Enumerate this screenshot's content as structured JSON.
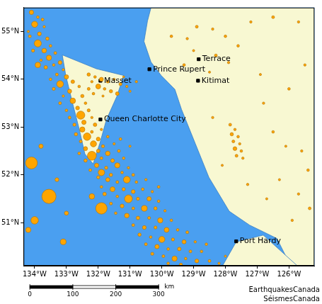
{
  "chart_data": {
    "type": "bubble",
    "color": "#ffa500",
    "grid": false,
    "xlim": [
      -134.35,
      -125.2
    ],
    "ylim": [
      50.1,
      55.5
    ],
    "xticks": [
      {
        "value": -134,
        "label": "134°W"
      },
      {
        "value": -133,
        "label": "133°W"
      },
      {
        "value": -132,
        "label": "132°W"
      },
      {
        "value": -131,
        "label": "131°W"
      },
      {
        "value": -130,
        "label": "130°W"
      },
      {
        "value": -129,
        "label": "129°W"
      },
      {
        "value": -128,
        "label": "128°W"
      },
      {
        "value": -127,
        "label": "127°W"
      },
      {
        "value": -126,
        "label": "126°W"
      }
    ],
    "yticks": [
      {
        "value": 51,
        "label": "51°N"
      },
      {
        "value": 52,
        "label": "52°N"
      },
      {
        "value": 53,
        "label": "53°N"
      },
      {
        "value": 54,
        "label": "54°N"
      },
      {
        "value": 55,
        "label": "55°N"
      }
    ],
    "points": [
      [
        -134.1,
        55.4,
        3.2
      ],
      [
        -133.9,
        55.3,
        2.5
      ],
      [
        -134.0,
        55.15,
        3.8
      ],
      [
        -133.7,
        55.1,
        2.4
      ],
      [
        -133.85,
        54.95,
        3.0
      ],
      [
        -134.15,
        54.9,
        2.6
      ],
      [
        -133.6,
        54.85,
        2.8
      ],
      [
        -133.9,
        54.75,
        4.1
      ],
      [
        -133.5,
        54.7,
        2.5
      ],
      [
        -133.7,
        54.6,
        3.3
      ],
      [
        -134.05,
        54.6,
        2.7
      ],
      [
        -133.35,
        54.55,
        2.6
      ],
      [
        -133.55,
        54.45,
        3.5
      ],
      [
        -133.8,
        54.4,
        2.4
      ],
      [
        -133.2,
        54.35,
        3.0
      ],
      [
        -133.4,
        54.3,
        2.5
      ],
      [
        -133.65,
        54.25,
        2.9
      ],
      [
        -133.9,
        54.3,
        3.6
      ],
      [
        -133.1,
        54.2,
        2.4
      ],
      [
        -134.2,
        55.0,
        2.3
      ],
      [
        -133.75,
        55.25,
        2.6
      ],
      [
        -132.3,
        54.1,
        2.8
      ],
      [
        -132.1,
        54.05,
        2.5
      ],
      [
        -131.9,
        54.0,
        3.1
      ],
      [
        -132.2,
        53.95,
        2.4
      ],
      [
        -131.7,
        53.95,
        2.6
      ],
      [
        -131.5,
        54.0,
        2.3
      ],
      [
        -132.0,
        53.85,
        3.4
      ],
      [
        -131.8,
        53.8,
        2.5
      ],
      [
        -131.3,
        53.9,
        2.7
      ],
      [
        -131.1,
        53.85,
        2.4
      ],
      [
        -132.3,
        53.8,
        2.6
      ],
      [
        -131.6,
        53.75,
        2.8
      ],
      [
        -131.0,
        53.75,
        2.3
      ],
      [
        -132.15,
        53.7,
        2.5
      ],
      [
        -131.4,
        53.7,
        2.9
      ],
      [
        -130.8,
        53.95,
        2.4
      ],
      [
        -131.2,
        54.05,
        2.2
      ],
      [
        -131.85,
        53.65,
        2.3
      ],
      [
        -133.3,
        54.1,
        2.6
      ],
      [
        -133.0,
        54.05,
        3.2
      ],
      [
        -133.5,
        54.0,
        2.5
      ],
      [
        -132.8,
        53.95,
        2.9
      ],
      [
        -133.2,
        53.9,
        4.0
      ],
      [
        -132.6,
        53.85,
        2.5
      ],
      [
        -133.4,
        53.8,
        2.7
      ],
      [
        -132.9,
        53.75,
        3.1
      ],
      [
        -133.1,
        53.65,
        2.4
      ],
      [
        -132.5,
        53.65,
        2.8
      ],
      [
        -132.8,
        53.55,
        3.6
      ],
      [
        -133.2,
        53.5,
        2.6
      ],
      [
        -132.4,
        53.5,
        2.5
      ],
      [
        -132.65,
        53.4,
        3.0
      ],
      [
        -133.0,
        53.35,
        2.5
      ],
      [
        -132.3,
        53.35,
        2.7
      ],
      [
        -132.55,
        53.25,
        4.4
      ],
      [
        -132.9,
        53.2,
        2.6
      ],
      [
        -132.2,
        53.2,
        2.4
      ],
      [
        -132.45,
        53.1,
        3.2
      ],
      [
        -132.75,
        53.05,
        2.7
      ],
      [
        -132.1,
        53.05,
        2.9
      ],
      [
        -132.5,
        52.95,
        3.5
      ],
      [
        -132.2,
        52.9,
        2.6
      ],
      [
        -131.9,
        52.95,
        2.4
      ],
      [
        -132.7,
        52.85,
        2.8
      ],
      [
        -132.35,
        52.8,
        4.2
      ],
      [
        -132.0,
        52.75,
        3.0
      ],
      [
        -131.7,
        52.8,
        2.5
      ],
      [
        -132.55,
        52.7,
        2.6
      ],
      [
        -132.15,
        52.65,
        3.8
      ],
      [
        -131.85,
        52.6,
        2.7
      ],
      [
        -131.5,
        52.65,
        2.4
      ],
      [
        -132.4,
        52.55,
        3.1
      ],
      [
        -132.0,
        52.5,
        2.9
      ],
      [
        -131.7,
        52.45,
        3.3
      ],
      [
        -131.35,
        52.5,
        2.6
      ],
      [
        -132.6,
        52.45,
        2.5
      ],
      [
        -132.2,
        52.4,
        4.6
      ],
      [
        -131.9,
        52.35,
        2.6
      ],
      [
        -131.55,
        52.3,
        3.0
      ],
      [
        -131.2,
        52.35,
        2.5
      ],
      [
        -132.4,
        52.3,
        2.8
      ],
      [
        -132.05,
        52.2,
        3.2
      ],
      [
        -131.75,
        52.15,
        2.7
      ],
      [
        -131.4,
        52.2,
        3.5
      ],
      [
        -131.05,
        52.15,
        2.4
      ],
      [
        -132.25,
        52.1,
        2.6
      ],
      [
        -131.9,
        52.05,
        3.9
      ],
      [
        -131.6,
        52.0,
        2.8
      ],
      [
        -131.25,
        52.05,
        2.5
      ],
      [
        -130.9,
        52.0,
        2.6
      ],
      [
        -131.3,
        52.75,
        2.5
      ],
      [
        -131.0,
        52.6,
        2.3
      ],
      [
        -132.0,
        51.95,
        2.7
      ],
      [
        -131.7,
        51.9,
        3.1
      ],
      [
        -131.4,
        51.85,
        2.6
      ],
      [
        -131.1,
        51.9,
        4.0
      ],
      [
        -130.8,
        51.85,
        2.5
      ],
      [
        -130.5,
        51.9,
        2.4
      ],
      [
        -131.9,
        51.75,
        2.5
      ],
      [
        -131.55,
        51.7,
        3.4
      ],
      [
        -131.2,
        51.7,
        2.8
      ],
      [
        -130.9,
        51.65,
        3.0
      ],
      [
        -130.6,
        51.7,
        2.6
      ],
      [
        -130.3,
        51.65,
        2.4
      ],
      [
        -131.8,
        51.6,
        2.9
      ],
      [
        -131.4,
        51.55,
        2.5
      ],
      [
        -131.05,
        51.5,
        4.3
      ],
      [
        -130.75,
        51.5,
        2.7
      ],
      [
        -130.4,
        51.5,
        3.2
      ],
      [
        -130.1,
        51.45,
        2.5
      ],
      [
        -131.6,
        51.4,
        2.6
      ],
      [
        -131.25,
        51.35,
        3.0
      ],
      [
        -130.9,
        51.3,
        2.6
      ],
      [
        -130.55,
        51.3,
        3.7
      ],
      [
        -130.2,
        51.3,
        2.8
      ],
      [
        -129.9,
        51.25,
        2.4
      ],
      [
        -131.45,
        51.2,
        2.5
      ],
      [
        -131.1,
        51.15,
        3.3
      ],
      [
        -130.75,
        51.1,
        2.9
      ],
      [
        -130.4,
        51.1,
        2.6
      ],
      [
        -130.05,
        51.05,
        3.5
      ],
      [
        -129.7,
        51.05,
        2.5
      ],
      [
        -131.9,
        51.3,
        5.2
      ],
      [
        -132.2,
        51.55,
        3.6
      ],
      [
        -130.1,
        51.75,
        2.5
      ],
      [
        -130.9,
        50.95,
        2.6
      ],
      [
        -130.55,
        50.9,
        3.0
      ],
      [
        -130.2,
        50.9,
        2.7
      ],
      [
        -129.85,
        50.85,
        3.4
      ],
      [
        -129.5,
        50.85,
        2.5
      ],
      [
        -129.2,
        50.8,
        2.6
      ],
      [
        -130.7,
        50.75,
        2.8
      ],
      [
        -130.35,
        50.7,
        2.5
      ],
      [
        -130.0,
        50.65,
        3.8
      ],
      [
        -129.65,
        50.65,
        2.7
      ],
      [
        -129.3,
        50.6,
        3.1
      ],
      [
        -128.95,
        50.6,
        2.4
      ],
      [
        -130.5,
        50.55,
        2.6
      ],
      [
        -130.15,
        50.5,
        3.2
      ],
      [
        -129.8,
        50.45,
        2.5
      ],
      [
        -129.45,
        50.45,
        2.9
      ],
      [
        -129.1,
        50.4,
        2.6
      ],
      [
        -128.75,
        50.4,
        2.5
      ],
      [
        -130.3,
        50.35,
        2.7
      ],
      [
        -129.95,
        50.3,
        2.6
      ],
      [
        -129.6,
        50.25,
        3.5
      ],
      [
        -129.25,
        50.25,
        2.5
      ],
      [
        -128.9,
        50.2,
        3.0
      ],
      [
        -128.5,
        50.2,
        2.6
      ],
      [
        -129.8,
        50.15,
        2.5
      ],
      [
        -129.4,
        50.12,
        2.8
      ],
      [
        -128.2,
        50.15,
        2.4
      ],
      [
        -128.0,
        50.3,
        2.3
      ],
      [
        -128.6,
        50.55,
        2.5
      ],
      [
        -134.1,
        52.25,
        5.3
      ],
      [
        -133.55,
        51.55,
        5.8
      ],
      [
        -134.0,
        51.05,
        4.2
      ],
      [
        -134.2,
        50.85,
        3.5
      ],
      [
        -133.3,
        51.9,
        3.0
      ],
      [
        -133.8,
        52.6,
        3.2
      ],
      [
        -133.1,
        50.6,
        3.7
      ],
      [
        -133.0,
        51.2,
        3.1
      ],
      [
        -129.7,
        54.9,
        2.5
      ],
      [
        -129.2,
        54.85,
        2.4
      ],
      [
        -128.9,
        55.1,
        2.6
      ],
      [
        -128.4,
        55.05,
        2.4
      ],
      [
        -128.0,
        54.9,
        2.5
      ],
      [
        -129.0,
        54.6,
        2.3
      ],
      [
        -128.3,
        54.5,
        2.6
      ],
      [
        -127.9,
        54.35,
        2.4
      ],
      [
        -128.5,
        54.15,
        2.3
      ],
      [
        -129.3,
        54.3,
        2.5
      ],
      [
        -127.6,
        54.7,
        2.5
      ],
      [
        -127.2,
        55.2,
        2.4
      ],
      [
        -126.5,
        55.3,
        2.6
      ],
      [
        -125.7,
        55.2,
        2.4
      ],
      [
        -127.85,
        53.05,
        2.6
      ],
      [
        -127.7,
        52.95,
        2.4
      ],
      [
        -127.8,
        52.85,
        2.8
      ],
      [
        -127.6,
        52.8,
        2.5
      ],
      [
        -127.75,
        52.7,
        2.6
      ],
      [
        -127.55,
        52.65,
        2.4
      ],
      [
        -127.7,
        52.55,
        3.0
      ],
      [
        -127.5,
        52.5,
        2.5
      ],
      [
        -127.65,
        52.4,
        2.6
      ],
      [
        -127.45,
        52.35,
        2.4
      ],
      [
        -126.8,
        53.5,
        2.4
      ],
      [
        -126.5,
        52.9,
        2.5
      ],
      [
        -126.1,
        52.6,
        2.3
      ],
      [
        -125.6,
        52.5,
        2.4
      ],
      [
        -125.4,
        52.1,
        2.5
      ],
      [
        -126.3,
        51.9,
        2.3
      ],
      [
        -125.7,
        51.6,
        2.4
      ],
      [
        -125.35,
        51.3,
        2.6
      ],
      [
        -125.9,
        51.05,
        2.4
      ],
      [
        -126.7,
        51.5,
        2.3
      ],
      [
        -127.3,
        51.8,
        2.4
      ],
      [
        -128.1,
        52.2,
        2.3
      ],
      [
        -128.4,
        53.2,
        2.4
      ],
      [
        -126.0,
        53.8,
        2.5
      ],
      [
        -125.5,
        54.3,
        2.4
      ],
      [
        -126.9,
        54.1,
        2.3
      ]
    ],
    "places": {
      "names": [
        "Masset",
        "Queen Charlotte City",
        "Prince Rupert",
        "Terrace",
        "Kitimat",
        "Port Hardy"
      ],
      "x": [
        -131.93,
        -131.93,
        -130.39,
        -128.84,
        -128.86,
        -127.66
      ],
      "y": [
        53.97,
        53.16,
        54.21,
        54.42,
        53.97,
        50.61
      ],
      "marker": "square",
      "color": "#000000"
    },
    "land": [
      [
        [
          -130.34,
          55.5
        ],
        [
          -125.2,
          55.5
        ],
        [
          -125.2,
          50.1
        ],
        [
          -125.95,
          50.1
        ],
        [
          -126.38,
          50.67
        ],
        [
          -127.24,
          50.95
        ],
        [
          -127.88,
          51.24
        ],
        [
          -128.52,
          51.95
        ],
        [
          -128.95,
          52.66
        ],
        [
          -129.38,
          53.37
        ],
        [
          -129.59,
          53.79
        ],
        [
          -130.02,
          54.08
        ],
        [
          -130.34,
          54.36
        ],
        [
          -130.56,
          54.79
        ],
        [
          -130.45,
          55.22
        ]
      ],
      [
        [
          -133.13,
          54.51
        ],
        [
          -132.06,
          54.22
        ],
        [
          -131.2,
          54.08
        ],
        [
          -131.41,
          53.65
        ],
        [
          -131.74,
          53.16
        ],
        [
          -131.95,
          52.66
        ],
        [
          -132.16,
          52.23
        ],
        [
          -132.42,
          52.44
        ],
        [
          -132.59,
          52.94
        ],
        [
          -132.81,
          53.51
        ],
        [
          -133.02,
          54.08
        ]
      ],
      [
        [
          -128.09,
          50.1
        ],
        [
          -127.66,
          50.6
        ],
        [
          -126.81,
          50.74
        ],
        [
          -125.74,
          50.1
        ]
      ]
    ],
    "scale_bar": {
      "ticks": [
        0,
        100,
        200,
        300
      ],
      "unit": "km"
    },
    "credits": [
      "EarthquakesCanada",
      "SéismesCanada"
    ]
  }
}
